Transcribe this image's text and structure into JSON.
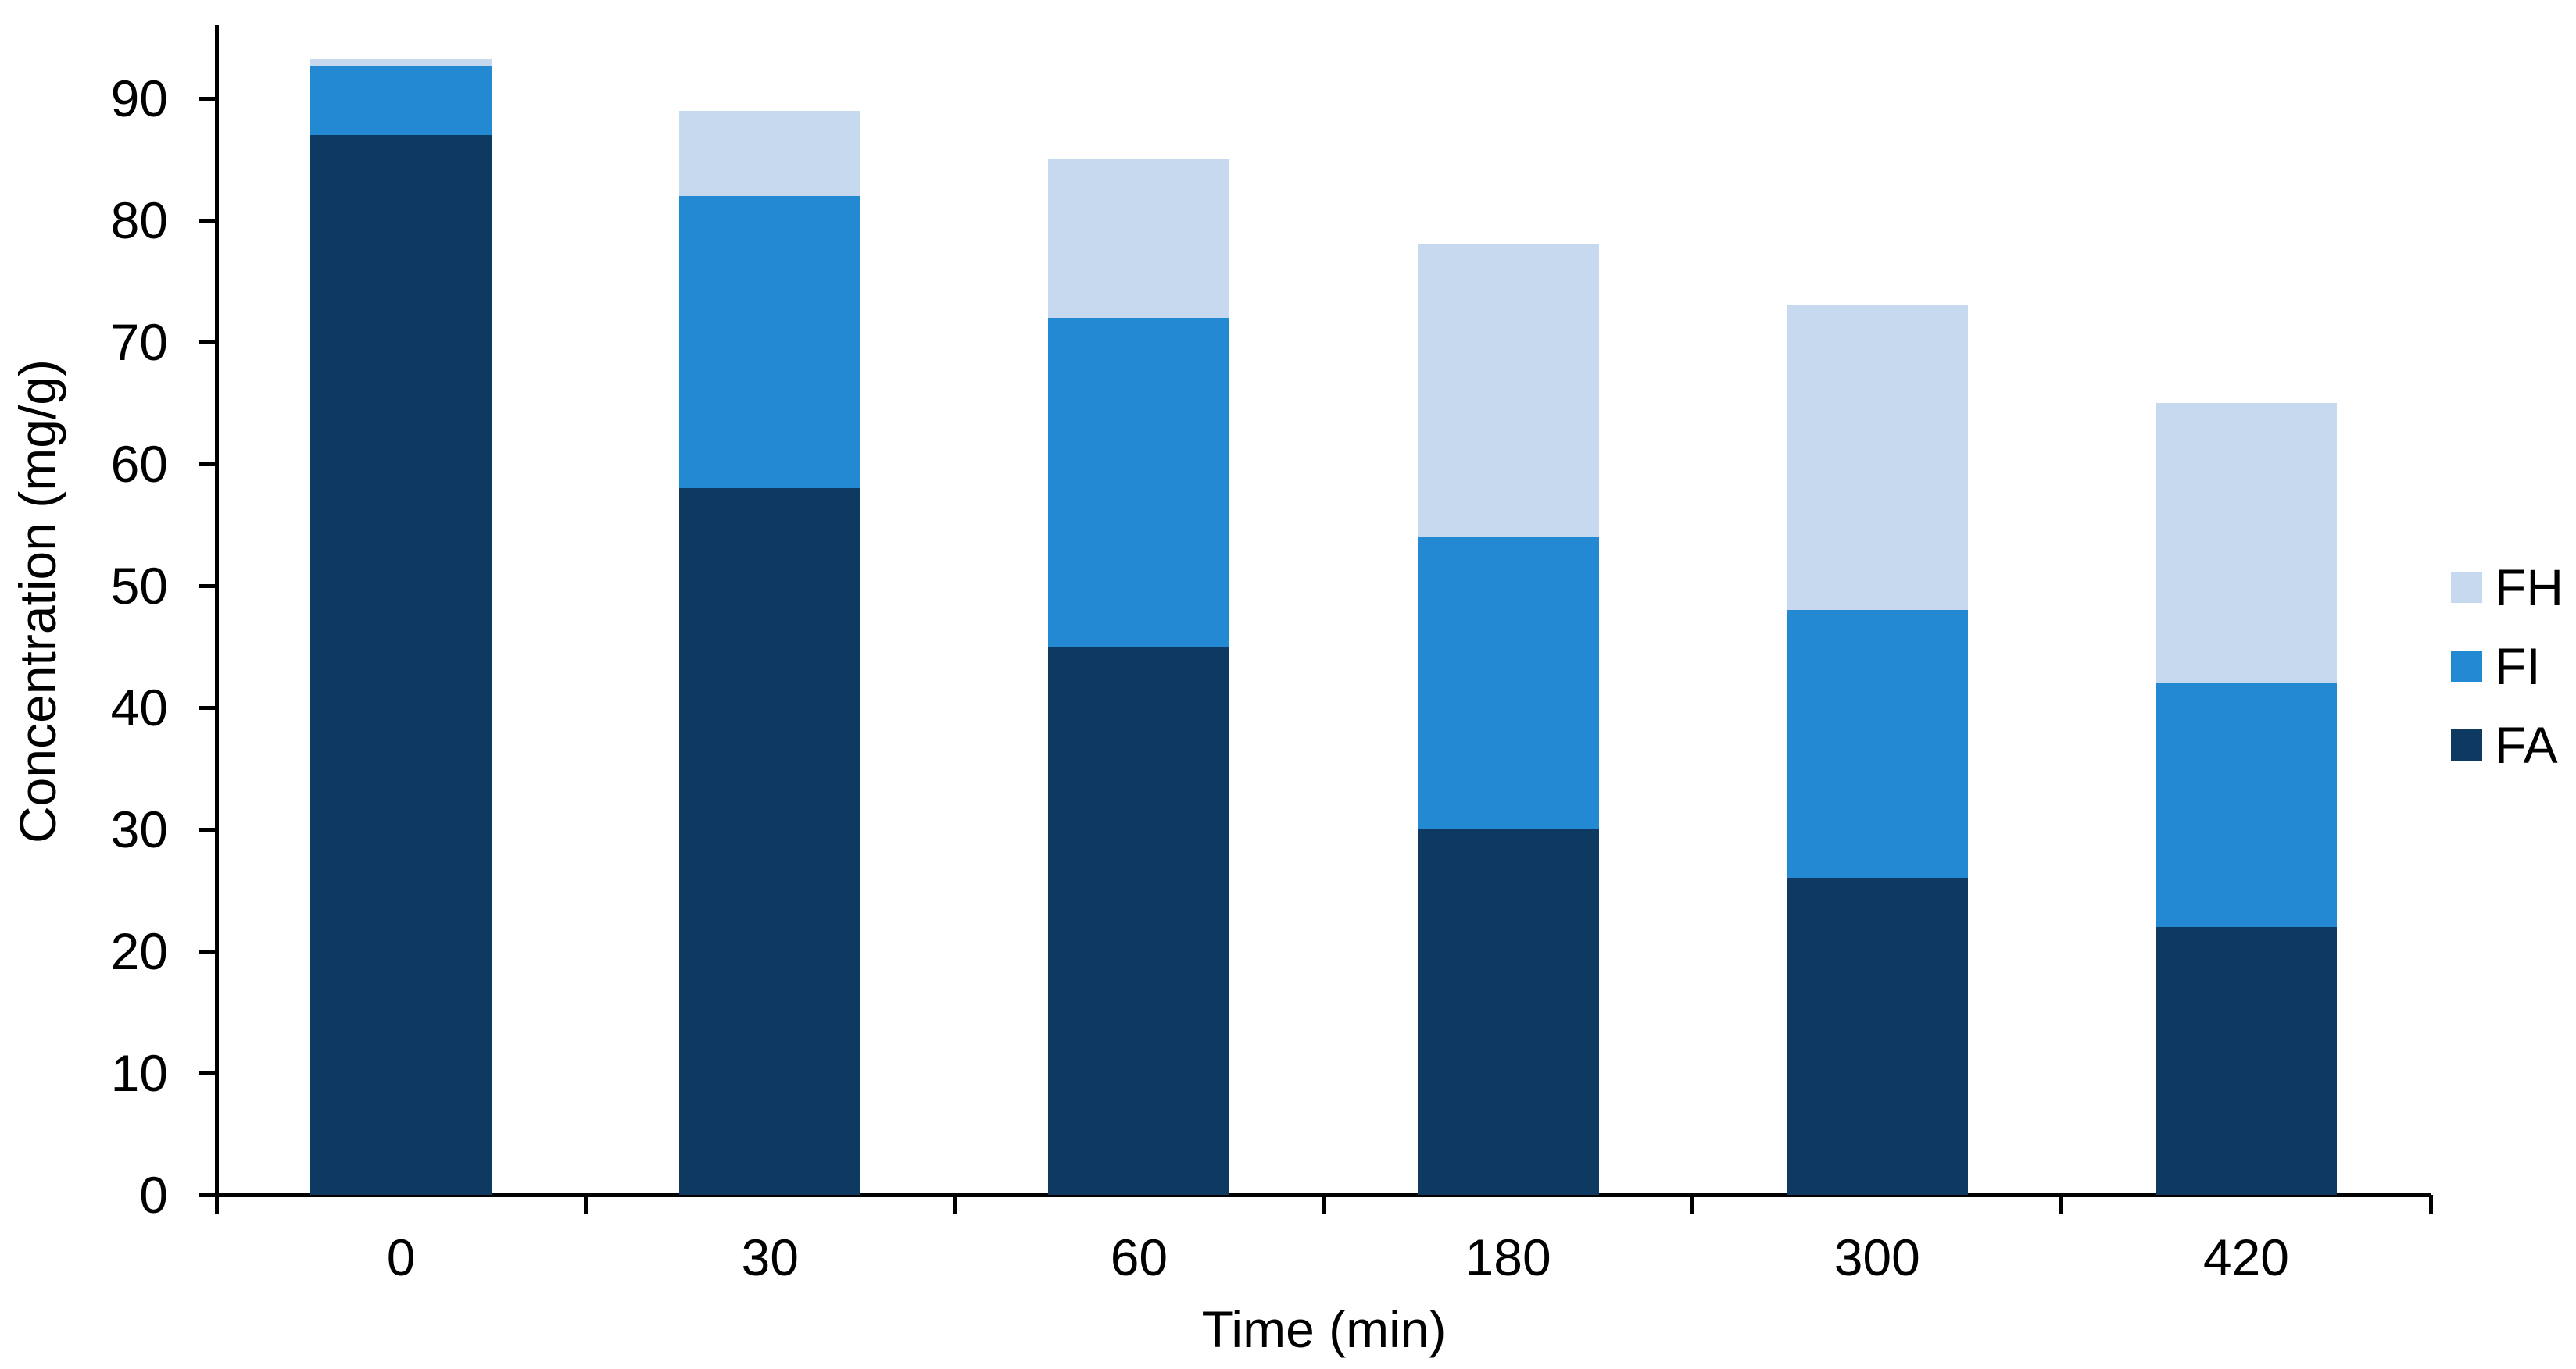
{
  "chart_data": {
    "type": "bar",
    "stacked": true,
    "title": "",
    "xlabel": "Time (min)",
    "ylabel": "Concentration (mg/g)",
    "categories": [
      "0",
      "30",
      "60",
      "180",
      "300",
      "420"
    ],
    "series": [
      {
        "name": "FA",
        "color": "#0E3A61",
        "values": [
          87,
          58,
          45,
          30,
          26,
          22
        ]
      },
      {
        "name": "FI",
        "color": "#2289D2",
        "values": [
          5.7,
          24,
          27,
          24,
          22,
          20
        ]
      },
      {
        "name": "FH",
        "color": "#C6D9EE",
        "values": [
          0.6,
          7,
          13,
          24,
          25,
          23
        ]
      }
    ],
    "stack_totals": [
      93.3,
      89,
      85,
      78,
      73,
      65
    ],
    "stack_order_bottom_to_top": [
      "FA",
      "FI",
      "FH"
    ],
    "segment_tops": {
      "FA_top": [
        87,
        58,
        45,
        30,
        26,
        22
      ],
      "FI_top": [
        92.7,
        82,
        72,
        54,
        48,
        42
      ],
      "FH_top": [
        93.3,
        89,
        85,
        78,
        73,
        65
      ]
    },
    "y_ticks": [
      0,
      10,
      20,
      30,
      40,
      50,
      60,
      70,
      80,
      90
    ],
    "ylim": [
      0,
      96
    ],
    "grid": false,
    "legend": {
      "position": "right",
      "entries_top_to_bottom": [
        "FH",
        "FI",
        "FA"
      ]
    },
    "axis_color": "#000000",
    "background": "#FFFFFF"
  }
}
